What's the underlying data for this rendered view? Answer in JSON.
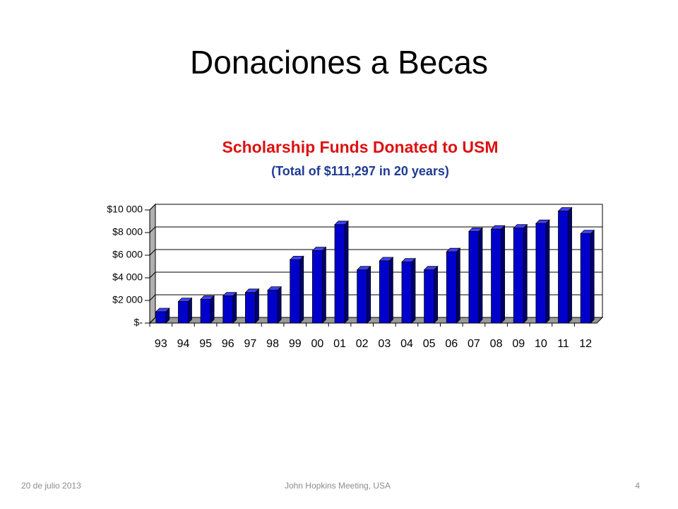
{
  "slide": {
    "title": "Donaciones a Becas",
    "date": "20 de julio 2013",
    "footer": "John Hopkins Meeting, USA",
    "page": "4"
  },
  "chart_data": {
    "type": "bar",
    "title": "Scholarship Funds Donated to USM",
    "subtitle": "(Total of $111,297 in 20 years)",
    "categories": [
      "93",
      "94",
      "95",
      "96",
      "97",
      "98",
      "99",
      "00",
      "01",
      "02",
      "03",
      "04",
      "05",
      "06",
      "07",
      "08",
      "09",
      "10",
      "11",
      "12"
    ],
    "values": [
      1000,
      1900,
      2100,
      2400,
      2700,
      2900,
      5600,
      6400,
      8700,
      4700,
      5500,
      5400,
      4700,
      6300,
      8100,
      8300,
      8400,
      8800,
      9900,
      7900
    ],
    "color": "#0000cc",
    "ylim": [
      0,
      10000
    ],
    "yticks": [
      {
        "value": 0,
        "label": "$-"
      },
      {
        "value": 2000,
        "label": "$2 000"
      },
      {
        "value": 4000,
        "label": "$4 000"
      },
      {
        "value": 6000,
        "label": "$6 000"
      },
      {
        "value": 8000,
        "label": "$8 000"
      },
      {
        "value": 10000,
        "label": "$10 000"
      }
    ],
    "grid": true
  }
}
